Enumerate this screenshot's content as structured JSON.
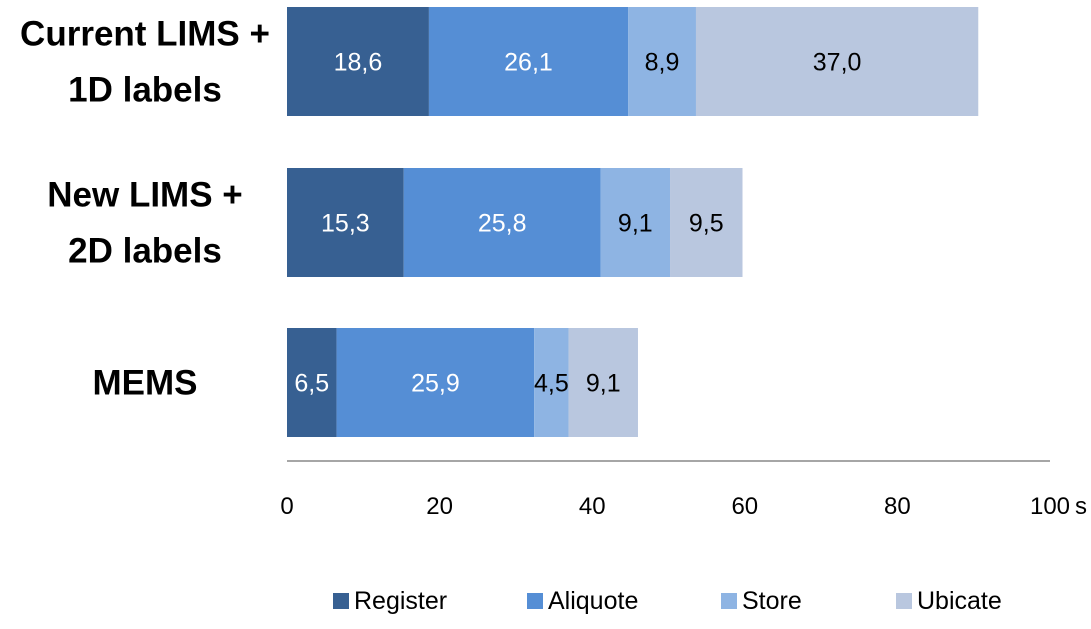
{
  "chart_data": {
    "type": "bar",
    "orientation": "horizontal",
    "stacked": true,
    "categories": [
      "Current LIMS +\n1D labels",
      "New LIMS +\n2D labels",
      "MEMS"
    ],
    "series": [
      {
        "name": "Register",
        "values": [
          18.6,
          15.3,
          6.5
        ],
        "labels": [
          "18,6",
          "15,3",
          "6,5"
        ],
        "color": "#376092",
        "label_color": "#ffffff"
      },
      {
        "name": "Aliquote",
        "values": [
          26.1,
          25.8,
          25.9
        ],
        "labels": [
          "26,1",
          "25,8",
          "25,9"
        ],
        "color": "#558ed5",
        "label_color": "#ffffff"
      },
      {
        "name": "Store",
        "values": [
          8.9,
          9.1,
          4.5
        ],
        "labels": [
          "8,9",
          "9,1",
          "4,5"
        ],
        "color": "#8eb4e3",
        "label_color": "#000000"
      },
      {
        "name": "Ubicate",
        "values": [
          37.0,
          9.5,
          9.1
        ],
        "labels": [
          "37,0",
          "9,5",
          "9,1"
        ],
        "color": "#b9c7df",
        "label_color": "#000000"
      }
    ],
    "xlim": [
      0,
      100
    ],
    "xticks": [
      0,
      20,
      40,
      60,
      80,
      100
    ],
    "tick_labels": [
      "0",
      "20",
      "40",
      "60",
      "80",
      "100"
    ],
    "x_unit": "s",
    "legend_position": "bottom",
    "grid": false
  }
}
